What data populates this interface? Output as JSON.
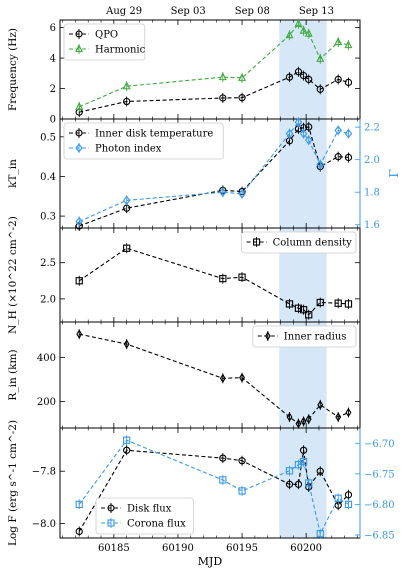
{
  "chart_data": [
    {
      "type": "line",
      "ylabel": "Frequency (Hz)",
      "ylim": [
        0,
        6.5
      ],
      "yticks": [
        0,
        2,
        4,
        6
      ],
      "top_axis": {
        "ticks": [
          60185.8,
          60190.8,
          60195.8,
          60200.8
        ],
        "labels": [
          "Aug 29",
          "Sep 03",
          "Sep 08",
          "Sep 13"
        ]
      },
      "legend": "top-left",
      "series": [
        {
          "name": "QPO",
          "color": "#000000",
          "marker": "circle",
          "axis": "left",
          "x": [
            60182.3,
            60186.0,
            60193.5,
            60195.0,
            60198.7,
            60199.4,
            60199.8,
            60200.2,
            60201.1,
            60202.5,
            60203.3
          ],
          "y": [
            0.45,
            1.15,
            1.38,
            1.4,
            2.75,
            3.1,
            2.85,
            2.6,
            1.95,
            2.6,
            2.4
          ]
        },
        {
          "name": "Harmonic",
          "color": "#3fa93f",
          "marker": "triangle",
          "axis": "left",
          "x": [
            60182.3,
            60186.0,
            60193.5,
            60195.0,
            60198.7,
            60199.4,
            60199.8,
            60200.2,
            60201.1,
            60202.5,
            60203.3
          ],
          "y": [
            0.8,
            2.15,
            2.75,
            2.7,
            5.5,
            6.25,
            5.8,
            5.6,
            3.95,
            5.05,
            4.85
          ]
        }
      ]
    },
    {
      "type": "line",
      "ylabel": "kT_in",
      "ylim": [
        0.27,
        0.545
      ],
      "yticks": [
        0.3,
        0.4,
        0.5
      ],
      "right_ylabel": "Γ",
      "right_ylim": [
        1.58,
        2.25
      ],
      "right_yticks": [
        1.6,
        1.8,
        2.0,
        2.2
      ],
      "legend": "top-left",
      "series": [
        {
          "name": "Inner disk temperature",
          "color": "#000000",
          "marker": "circle",
          "axis": "left",
          "x": [
            60182.3,
            60186.0,
            60193.5,
            60195.0,
            60198.7,
            60199.4,
            60199.8,
            60200.2,
            60201.1,
            60202.5,
            60203.3
          ],
          "y": [
            0.275,
            0.32,
            0.365,
            0.362,
            0.49,
            0.52,
            0.523,
            0.525,
            0.425,
            0.45,
            0.448
          ]
        },
        {
          "name": "Photon index",
          "color": "#3a98e8",
          "marker": "diamond",
          "axis": "right",
          "x": [
            60182.3,
            60186.0,
            60193.5,
            60195.0,
            60198.7,
            60199.4,
            60199.8,
            60200.2,
            60201.1,
            60202.5,
            60203.3
          ],
          "y": [
            1.62,
            1.75,
            1.8,
            1.79,
            2.16,
            2.23,
            2.16,
            2.12,
            1.97,
            2.18,
            2.16
          ]
        }
      ]
    },
    {
      "type": "line",
      "ylabel": "N_H (×10^22 cm^-2)",
      "ylim": [
        1.68,
        2.98
      ],
      "yticks": [
        2.0,
        2.5
      ],
      "legend": "top-right",
      "series": [
        {
          "name": "Column density",
          "color": "#000000",
          "marker": "square",
          "axis": "left",
          "x": [
            60182.3,
            60186.0,
            60193.5,
            60195.0,
            60198.7,
            60199.4,
            60199.8,
            60200.2,
            60201.1,
            60202.5,
            60203.3
          ],
          "y": [
            2.25,
            2.7,
            2.28,
            2.3,
            1.93,
            1.87,
            1.85,
            1.78,
            1.95,
            1.94,
            1.93
          ]
        }
      ]
    },
    {
      "type": "line",
      "ylabel": "R_in (km)",
      "ylim": [
        80,
        560
      ],
      "yticks": [
        200,
        400
      ],
      "legend": "top-right",
      "series": [
        {
          "name": "Inner radius",
          "color": "#000000",
          "marker": "diamond-thin",
          "axis": "left",
          "x": [
            60182.3,
            60186.0,
            60193.5,
            60195.0,
            60198.7,
            60199.4,
            60199.8,
            60200.2,
            60201.1,
            60202.5,
            60203.3
          ],
          "y": [
            505,
            460,
            305,
            308,
            130,
            100,
            110,
            120,
            185,
            130,
            150
          ]
        }
      ]
    },
    {
      "type": "line",
      "ylabel": "Log F (erg s^-1 cm^-2)",
      "ylim": [
        -8.055,
        -7.635
      ],
      "yticks": [
        -8.0,
        -7.8
      ],
      "right_ylim": [
        -6.855,
        -6.675
      ],
      "right_yticks": [
        -6.85,
        -6.8,
        -6.75,
        -6.7
      ],
      "xlabel": "MJD",
      "xticks": [
        60185,
        60190,
        60195,
        60200
      ],
      "legend": "bottom-left",
      "series": [
        {
          "name": "Disk flux",
          "color": "#000000",
          "marker": "circle",
          "axis": "left",
          "x": [
            60182.3,
            60186.0,
            60193.5,
            60195.0,
            60198.7,
            60199.4,
            60199.8,
            60200.2,
            60201.1,
            60202.5,
            60203.3
          ],
          "y": [
            -8.03,
            -7.72,
            -7.75,
            -7.76,
            -7.85,
            -7.85,
            -7.72,
            -7.86,
            -7.8,
            -7.93,
            -7.89
          ]
        },
        {
          "name": "Corona flux",
          "color": "#3a98e8",
          "marker": "square",
          "axis": "right",
          "x": [
            60182.3,
            60186.0,
            60193.5,
            60195.0,
            60198.7,
            60199.4,
            60199.8,
            60200.2,
            60201.1,
            60202.5,
            60203.3
          ],
          "y": [
            -6.8,
            -6.695,
            -6.76,
            -6.778,
            -6.745,
            -6.735,
            -6.73,
            -6.765,
            -6.848,
            -6.79,
            -6.8
          ]
        }
      ]
    }
  ],
  "shared": {
    "xlim": [
      60180.8,
      60204.2
    ],
    "highlight_band": {
      "x0": 60197.9,
      "x1": 60201.6,
      "color": "#d6e8f8"
    },
    "left_axis_color": "#000000",
    "right_axis_color": "#3a98e8"
  }
}
